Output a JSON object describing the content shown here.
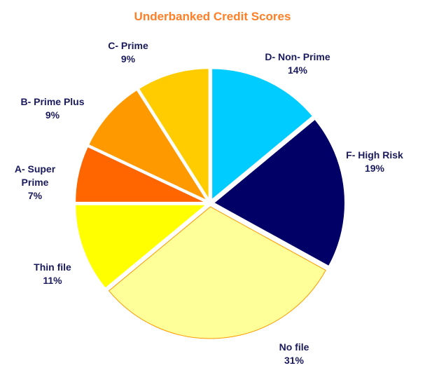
{
  "chart_data": {
    "type": "pie",
    "title": "Underbanked Credit Scores",
    "categories": [
      "D- Non- Prime",
      "F- High Risk",
      "No file",
      "Thin file",
      "A- Super Prime",
      "B- Prime Plus",
      "C- Prime"
    ],
    "values": [
      14,
      19,
      31,
      11,
      7,
      9,
      9
    ],
    "value_labels": [
      "14%",
      "19%",
      "31%",
      "11%",
      "7%",
      "9%",
      "9%"
    ],
    "colors": [
      "#00ccff",
      "#000066",
      "#ffff99",
      "#ffff00",
      "#ff6600",
      "#ff9900",
      "#ffcc00"
    ]
  }
}
